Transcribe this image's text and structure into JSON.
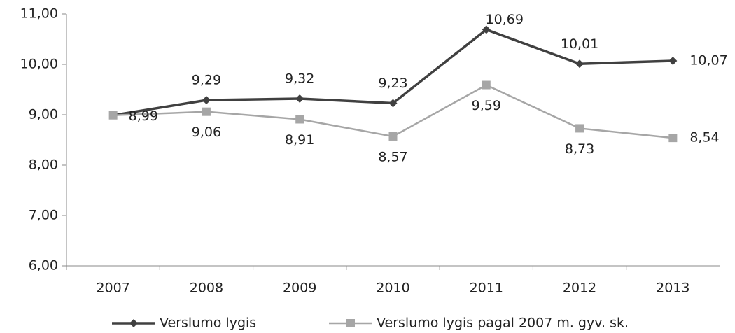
{
  "chart_data": {
    "type": "line",
    "categories": [
      "2007",
      "2008",
      "2009",
      "2010",
      "2011",
      "2012",
      "2013"
    ],
    "series": [
      {
        "name": "Verslumo lygis",
        "color": "#404040",
        "marker": "diamond",
        "values": [
          8.99,
          9.29,
          9.32,
          9.23,
          10.69,
          10.01,
          10.07
        ],
        "value_labels": [
          null,
          "9,29",
          "9,32",
          "9,23",
          "10,69",
          "10,01",
          "10,07"
        ]
      },
      {
        "name": "Verslumo lygis pagal 2007 m. gyv. sk.",
        "color": "#a6a6a6",
        "marker": "square",
        "values": [
          8.99,
          9.06,
          8.91,
          8.57,
          9.59,
          8.73,
          8.54
        ],
        "value_labels": [
          "8,99",
          "9,06",
          "8,91",
          "8,57",
          "9,59",
          "8,73",
          "8,54"
        ]
      }
    ],
    "ylim": [
      6,
      11
    ],
    "yticks": [
      {
        "value": 6,
        "label": "6,00"
      },
      {
        "value": 7,
        "label": "7,00"
      },
      {
        "value": 8,
        "label": "8,00"
      },
      {
        "value": 9,
        "label": "9,00"
      },
      {
        "value": 10,
        "label": "10,00"
      },
      {
        "value": 11,
        "label": "11,00"
      }
    ],
    "grid": false,
    "legend": "bottom"
  }
}
